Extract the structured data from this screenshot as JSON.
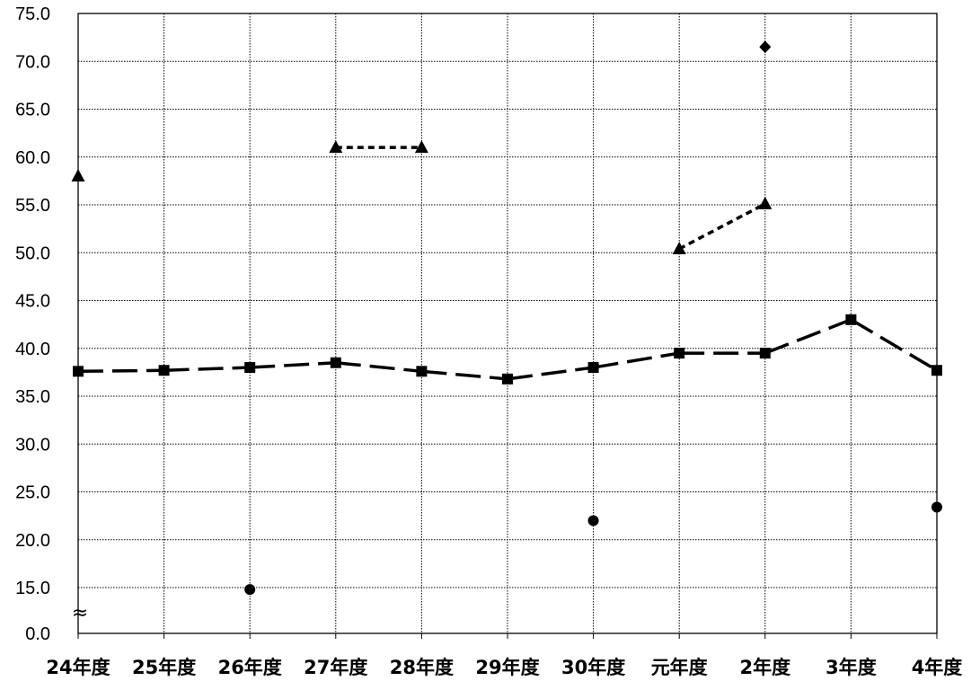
{
  "chart_data": {
    "type": "line",
    "categories": [
      "24年度",
      "25年度",
      "26年度",
      "27年度",
      "28年度",
      "29年度",
      "30年度",
      "元年度",
      "2年度",
      "3年度",
      "4年度"
    ],
    "y_ticks": [
      "0.0",
      "15.0",
      "20.0",
      "25.0",
      "30.0",
      "35.0",
      "40.0",
      "45.0",
      "50.0",
      "55.0",
      "60.0",
      "65.0",
      "70.0",
      "75.0"
    ],
    "ylim": [
      0,
      75
    ],
    "axis_break": {
      "between": [
        0,
        15
      ],
      "symbol": "≈"
    },
    "grid": true,
    "series": [
      {
        "marker": "square",
        "line": "long-dash",
        "color": "#000000",
        "values": [
          37.6,
          37.7,
          38.0,
          38.5,
          37.6,
          36.8,
          38.0,
          39.5,
          39.5,
          43.0,
          37.7
        ]
      },
      {
        "marker": "triangle",
        "line": "short-dash",
        "color": "#000000",
        "values": [
          58.0,
          null,
          null,
          61.0,
          61.0,
          null,
          null,
          50.4,
          55.1,
          null,
          null
        ]
      },
      {
        "marker": "circle",
        "line": "none",
        "color": "#000000",
        "values": [
          null,
          null,
          14.8,
          null,
          null,
          null,
          22.0,
          null,
          null,
          null,
          23.4
        ]
      },
      {
        "marker": "diamond",
        "line": "none",
        "color": "#000000",
        "values": [
          null,
          null,
          null,
          null,
          null,
          null,
          null,
          null,
          71.5,
          null,
          null
        ]
      }
    ],
    "title": "",
    "xlabel": "",
    "ylabel": ""
  }
}
